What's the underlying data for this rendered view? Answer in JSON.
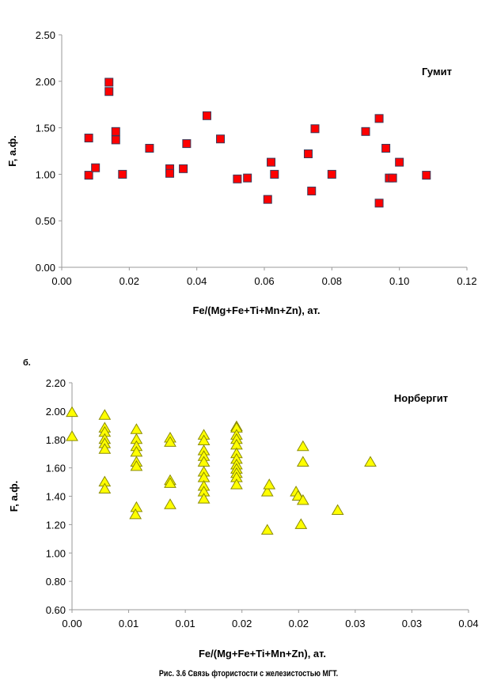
{
  "panel_b_label": "б.",
  "caption": "Рис. 3.6 Связь фтористости  с железистостью  МГТ.",
  "chart_data": [
    {
      "type": "scatter",
      "title": "Гумит",
      "xlabel": "Fe/(Mg+Fe+Ti+Mn+Zn), ат.",
      "ylabel": "F, а.ф.",
      "xlim": [
        0,
        0.12
      ],
      "ylim": [
        0,
        2.5
      ],
      "x_ticks": [
        "0.00",
        "0.02",
        "0.04",
        "0.06",
        "0.08",
        "0.10",
        "0.12"
      ],
      "y_ticks": [
        "0.00",
        "0.50",
        "1.00",
        "1.50",
        "2.00",
        "2.50"
      ],
      "grid": false,
      "marker": "square",
      "color": "#ff0000",
      "edge_color": "#3a3a5a",
      "points": [
        [
          0.008,
          1.39
        ],
        [
          0.008,
          0.99
        ],
        [
          0.01,
          1.07
        ],
        [
          0.014,
          1.99
        ],
        [
          0.014,
          1.89
        ],
        [
          0.016,
          1.46
        ],
        [
          0.016,
          1.37
        ],
        [
          0.018,
          1.0
        ],
        [
          0.026,
          1.28
        ],
        [
          0.032,
          1.06
        ],
        [
          0.032,
          1.01
        ],
        [
          0.036,
          1.06
        ],
        [
          0.037,
          1.33
        ],
        [
          0.043,
          1.63
        ],
        [
          0.047,
          1.38
        ],
        [
          0.052,
          0.95
        ],
        [
          0.055,
          0.96
        ],
        [
          0.061,
          0.73
        ],
        [
          0.062,
          1.13
        ],
        [
          0.063,
          1.0
        ],
        [
          0.073,
          1.22
        ],
        [
          0.074,
          0.82
        ],
        [
          0.075,
          1.49
        ],
        [
          0.08,
          1.0
        ],
        [
          0.09,
          1.46
        ],
        [
          0.094,
          1.6
        ],
        [
          0.094,
          0.69
        ],
        [
          0.096,
          1.28
        ],
        [
          0.097,
          0.96
        ],
        [
          0.098,
          0.96
        ],
        [
          0.1,
          1.13
        ],
        [
          0.108,
          0.99
        ]
      ]
    },
    {
      "type": "scatter",
      "title": "Норбергит",
      "xlabel": "Fe/(Mg+Fe+Ti+Mn+Zn), ат.",
      "ylabel": "F, а.ф.",
      "xlim": [
        0,
        0.04
      ],
      "ylim": [
        0.6,
        2.2
      ],
      "x_ticks": [
        "0.00",
        "0.01",
        "0.01",
        "0.02",
        "0.02",
        "0.03",
        "0.03",
        "0.04"
      ],
      "y_ticks": [
        "0.60",
        "0.80",
        "1.00",
        "1.20",
        "1.40",
        "1.60",
        "1.80",
        "2.00",
        "2.20"
      ],
      "grid": false,
      "marker": "triangle",
      "color": "#ffff00",
      "edge_color": "#8a8a00",
      "points": [
        [
          0.0,
          1.99
        ],
        [
          0.0,
          1.82
        ],
        [
          0.0033,
          1.97
        ],
        [
          0.0033,
          1.88
        ],
        [
          0.0033,
          1.85
        ],
        [
          0.0033,
          1.8
        ],
        [
          0.0033,
          1.77
        ],
        [
          0.0033,
          1.73
        ],
        [
          0.0033,
          1.5
        ],
        [
          0.0033,
          1.45
        ],
        [
          0.0065,
          1.87
        ],
        [
          0.0065,
          1.8
        ],
        [
          0.0065,
          1.75
        ],
        [
          0.0065,
          1.71
        ],
        [
          0.0065,
          1.64
        ],
        [
          0.0065,
          1.61
        ],
        [
          0.0065,
          1.32
        ],
        [
          0.0064,
          1.27
        ],
        [
          0.0099,
          1.81
        ],
        [
          0.0099,
          1.78
        ],
        [
          0.0099,
          1.51
        ],
        [
          0.0099,
          1.49
        ],
        [
          0.0099,
          1.34
        ],
        [
          0.0133,
          1.83
        ],
        [
          0.0133,
          1.79
        ],
        [
          0.0133,
          1.72
        ],
        [
          0.0133,
          1.68
        ],
        [
          0.0133,
          1.64
        ],
        [
          0.0133,
          1.57
        ],
        [
          0.0133,
          1.53
        ],
        [
          0.0133,
          1.47
        ],
        [
          0.0133,
          1.43
        ],
        [
          0.0133,
          1.38
        ],
        [
          0.0166,
          1.89
        ],
        [
          0.0166,
          1.88
        ],
        [
          0.0166,
          1.83
        ],
        [
          0.0166,
          1.8
        ],
        [
          0.0166,
          1.76
        ],
        [
          0.0166,
          1.7
        ],
        [
          0.0166,
          1.66
        ],
        [
          0.0166,
          1.62
        ],
        [
          0.0166,
          1.59
        ],
        [
          0.0166,
          1.56
        ],
        [
          0.0166,
          1.53
        ],
        [
          0.0166,
          1.48
        ],
        [
          0.0197,
          1.43
        ],
        [
          0.0199,
          1.48
        ],
        [
          0.0197,
          1.16
        ],
        [
          0.0226,
          1.43
        ],
        [
          0.0228,
          1.4
        ],
        [
          0.0231,
          1.2
        ],
        [
          0.0233,
          1.75
        ],
        [
          0.0233,
          1.64
        ],
        [
          0.0233,
          1.37
        ],
        [
          0.0268,
          1.3
        ],
        [
          0.0301,
          1.64
        ]
      ]
    }
  ]
}
